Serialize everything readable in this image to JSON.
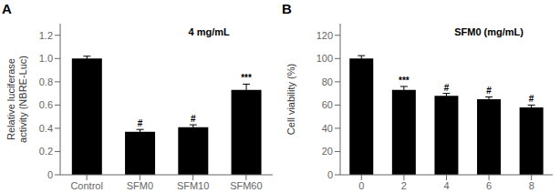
{
  "chart_data": [
    {
      "type": "bar",
      "label": "A",
      "categories": [
        "Control",
        "SFM0",
        "SFM10",
        "SFM60"
      ],
      "values": [
        1.0,
        0.37,
        0.41,
        0.73
      ],
      "errors": [
        0.02,
        0.02,
        0.02,
        0.05
      ],
      "ylabel": "Relative luciferase\nactivity (NBRE-Luc)",
      "ylim": [
        0,
        1.3
      ],
      "yticks": [
        0,
        0.2,
        0.4,
        0.6,
        0.8,
        {
          "value": 1.0,
          "label": "1.0"
        },
        1.2
      ],
      "annotation": "4 mg/mL",
      "color": "#000000",
      "significance": [
        null,
        "#",
        "#",
        "***"
      ]
    },
    {
      "type": "bar",
      "label": "B",
      "categories": [
        "0",
        "2",
        "4",
        "6",
        "8"
      ],
      "values": [
        100.0,
        73.0,
        68.0,
        65.0,
        58.0
      ],
      "errors": [
        2.5,
        3.0,
        2.0,
        2.0,
        2.0
      ],
      "ylabel": "Cell viability (%)",
      "ylim": [
        0,
        130
      ],
      "yticks": [
        0,
        20,
        40,
        60,
        80,
        100,
        120
      ],
      "annotation": "SFM0 (mg/mL)",
      "color": "#000000",
      "significance": [
        null,
        "***",
        "#",
        "#",
        "#"
      ]
    }
  ]
}
